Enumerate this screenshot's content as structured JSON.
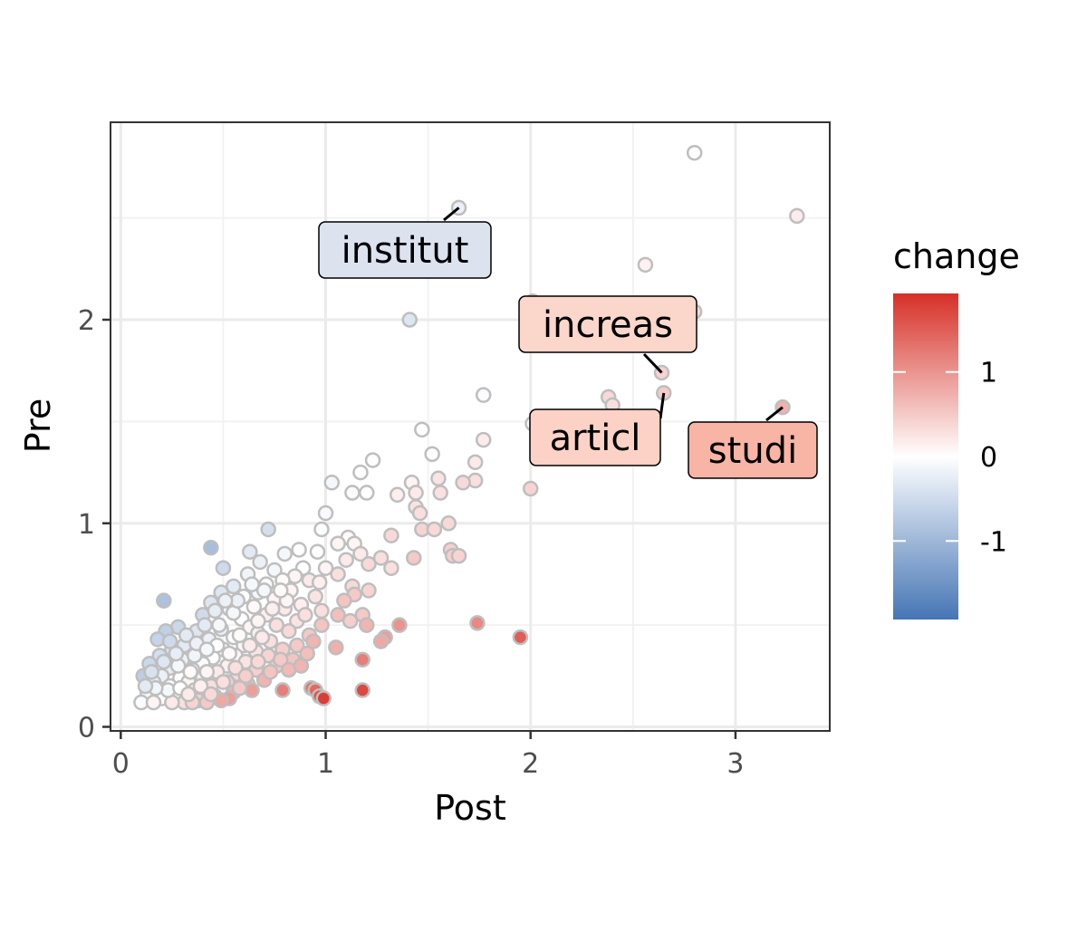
{
  "chart_data": {
    "type": "scatter",
    "xlabel": "Post",
    "ylabel": "Pre",
    "xlim": [
      -0.05,
      3.46
    ],
    "ylim": [
      -0.02,
      2.97
    ],
    "x_ticks": [
      0,
      1,
      2,
      3
    ],
    "y_ticks": [
      0,
      1,
      2
    ],
    "x_tick_labels": [
      "0",
      "1",
      "2",
      "3"
    ],
    "y_tick_labels": [
      "0",
      "1",
      "2"
    ],
    "grid": true,
    "point_outline_color": "#bebebe",
    "color_scale": {
      "title": "change",
      "low_color": "#4575b4",
      "mid_color": "#ffffff",
      "high_color": "#d73027",
      "range": [
        -1.93,
        1.93
      ],
      "breaks": [
        1,
        0,
        -1
      ],
      "break_labels": [
        "1",
        "0",
        "-1"
      ]
    },
    "annotations": [
      {
        "label": "institut",
        "x": 1.65,
        "y": 2.55,
        "change": -0.21,
        "fill": "#dde2ef"
      },
      {
        "label": "increas",
        "x": 2.64,
        "y": 1.74,
        "change": 0.42,
        "fill": "#fbd6cb"
      },
      {
        "label": "articl",
        "x": 2.65,
        "y": 1.64,
        "change": 0.48,
        "fill": "#fbd2c5"
      },
      {
        "label": "studi",
        "x": 3.23,
        "y": 1.57,
        "change": 0.72,
        "fill": "#f8b4a5"
      }
    ],
    "points": [
      {
        "x": 1.65,
        "y": 2.55,
        "change": -0.21
      },
      {
        "x": 2.8,
        "y": 2.82,
        "change": 0.02
      },
      {
        "x": 3.3,
        "y": 2.51,
        "change": 0.17
      },
      {
        "x": 2.56,
        "y": 2.27,
        "change": 0.12
      },
      {
        "x": 2.8,
        "y": 2.04,
        "change": 0.32
      },
      {
        "x": 2.01,
        "y": 2.09,
        "change": -0.02
      },
      {
        "x": 1.41,
        "y": 2.0,
        "change": -0.35
      },
      {
        "x": 2.64,
        "y": 1.74,
        "change": 0.42
      },
      {
        "x": 2.65,
        "y": 1.64,
        "change": 0.48
      },
      {
        "x": 3.23,
        "y": 1.57,
        "change": 0.72
      },
      {
        "x": 1.77,
        "y": 1.63,
        "change": -0.05
      },
      {
        "x": 2.38,
        "y": 1.62,
        "change": 0.35
      },
      {
        "x": 2.4,
        "y": 1.58,
        "change": 0.3
      },
      {
        "x": 1.77,
        "y": 1.41,
        "change": 0.18
      },
      {
        "x": 1.47,
        "y": 1.46,
        "change": 0.0
      },
      {
        "x": 2.01,
        "y": 1.49,
        "change": 0.05
      },
      {
        "x": 1.52,
        "y": 1.34,
        "change": 0.02
      },
      {
        "x": 1.23,
        "y": 1.31,
        "change": -0.03
      },
      {
        "x": 1.73,
        "y": 1.3,
        "change": 0.2
      },
      {
        "x": 1.17,
        "y": 1.25,
        "change": -0.02
      },
      {
        "x": 1.73,
        "y": 1.21,
        "change": 0.3
      },
      {
        "x": 1.67,
        "y": 1.2,
        "change": 0.35
      },
      {
        "x": 1.55,
        "y": 1.22,
        "change": 0.25
      },
      {
        "x": 1.42,
        "y": 1.2,
        "change": 0.1
      },
      {
        "x": 1.03,
        "y": 1.2,
        "change": -0.1
      },
      {
        "x": 1.35,
        "y": 1.14,
        "change": 0.15
      },
      {
        "x": 1.44,
        "y": 1.15,
        "change": 0.2
      },
      {
        "x": 1.56,
        "y": 1.15,
        "change": 0.28
      },
      {
        "x": 1.2,
        "y": 1.15,
        "change": 0.0
      },
      {
        "x": 1.13,
        "y": 1.15,
        "change": -0.05
      },
      {
        "x": 2.0,
        "y": 1.17,
        "change": 0.4
      },
      {
        "x": 1.44,
        "y": 1.08,
        "change": 0.25
      },
      {
        "x": 1.46,
        "y": 1.05,
        "change": 0.3
      },
      {
        "x": 1.0,
        "y": 1.05,
        "change": -0.08
      },
      {
        "x": 1.6,
        "y": 1.0,
        "change": 0.35
      },
      {
        "x": 1.47,
        "y": 0.97,
        "change": 0.4
      },
      {
        "x": 1.53,
        "y": 0.97,
        "change": 0.35
      },
      {
        "x": 0.98,
        "y": 0.97,
        "change": -0.03
      },
      {
        "x": 0.72,
        "y": 0.97,
        "change": -0.45
      },
      {
        "x": 1.32,
        "y": 0.94,
        "change": 0.35
      },
      {
        "x": 1.11,
        "y": 0.93,
        "change": 0.05
      },
      {
        "x": 1.14,
        "y": 0.9,
        "change": 0.1
      },
      {
        "x": 1.06,
        "y": 0.9,
        "change": 0.1
      },
      {
        "x": 0.44,
        "y": 0.88,
        "change": -0.9
      },
      {
        "x": 0.87,
        "y": 0.87,
        "change": 0.0
      },
      {
        "x": 0.8,
        "y": 0.85,
        "change": -0.1
      },
      {
        "x": 0.63,
        "y": 0.86,
        "change": -0.3
      },
      {
        "x": 0.96,
        "y": 0.86,
        "change": 0.0
      },
      {
        "x": 1.17,
        "y": 0.85,
        "change": 0.2
      },
      {
        "x": 1.61,
        "y": 0.87,
        "change": 0.45
      },
      {
        "x": 1.62,
        "y": 0.84,
        "change": 0.45
      },
      {
        "x": 1.65,
        "y": 0.84,
        "change": 0.4
      },
      {
        "x": 1.43,
        "y": 0.83,
        "change": 0.5
      },
      {
        "x": 1.27,
        "y": 0.83,
        "change": 0.3
      },
      {
        "x": 1.1,
        "y": 0.82,
        "change": 0.2
      },
      {
        "x": 0.68,
        "y": 0.81,
        "change": -0.2
      },
      {
        "x": 1.21,
        "y": 0.8,
        "change": 0.35
      },
      {
        "x": 1.32,
        "y": 0.78,
        "change": 0.3
      },
      {
        "x": 1.0,
        "y": 0.78,
        "change": 0.1
      },
      {
        "x": 0.89,
        "y": 0.78,
        "change": 0.0
      },
      {
        "x": 0.5,
        "y": 0.78,
        "change": -0.5
      },
      {
        "x": 0.75,
        "y": 0.77,
        "change": -0.1
      },
      {
        "x": 1.06,
        "y": 0.75,
        "change": 0.3
      },
      {
        "x": 0.85,
        "y": 0.74,
        "change": 0.1
      },
      {
        "x": 0.62,
        "y": 0.75,
        "change": -0.15
      },
      {
        "x": 0.79,
        "y": 0.72,
        "change": 0.05
      },
      {
        "x": 0.92,
        "y": 0.72,
        "change": 0.2
      },
      {
        "x": 0.97,
        "y": 0.71,
        "change": 0.15
      },
      {
        "x": 0.71,
        "y": 0.7,
        "change": -0.05
      },
      {
        "x": 0.55,
        "y": 0.69,
        "change": -0.3
      },
      {
        "x": 1.13,
        "y": 0.69,
        "change": 0.35
      },
      {
        "x": 1.21,
        "y": 0.67,
        "change": 0.4
      },
      {
        "x": 0.83,
        "y": 0.67,
        "change": 0.1
      },
      {
        "x": 0.67,
        "y": 0.66,
        "change": -0.1
      },
      {
        "x": 0.49,
        "y": 0.66,
        "change": -0.35
      },
      {
        "x": 1.14,
        "y": 0.65,
        "change": 0.5
      },
      {
        "x": 0.95,
        "y": 0.64,
        "change": 0.25
      },
      {
        "x": 0.6,
        "y": 0.64,
        "change": 0.0
      },
      {
        "x": 0.75,
        "y": 0.63,
        "change": 0.1
      },
      {
        "x": 0.21,
        "y": 0.62,
        "change": -0.85
      },
      {
        "x": 0.44,
        "y": 0.61,
        "change": -0.35
      },
      {
        "x": 1.09,
        "y": 0.62,
        "change": 0.55
      },
      {
        "x": 0.88,
        "y": 0.6,
        "change": 0.15
      },
      {
        "x": 0.65,
        "y": 0.59,
        "change": 0.05
      },
      {
        "x": 0.53,
        "y": 0.58,
        "change": -0.1
      },
      {
        "x": 0.8,
        "y": 0.58,
        "change": 0.2
      },
      {
        "x": 0.98,
        "y": 0.57,
        "change": 0.3
      },
      {
        "x": 1.06,
        "y": 0.55,
        "change": 0.6
      },
      {
        "x": 0.4,
        "y": 0.55,
        "change": -0.5
      },
      {
        "x": 1.18,
        "y": 0.55,
        "change": 0.5
      },
      {
        "x": 0.71,
        "y": 0.55,
        "change": 0.15
      },
      {
        "x": 0.59,
        "y": 0.53,
        "change": 0.0
      },
      {
        "x": 1.12,
        "y": 0.52,
        "change": 0.45
      },
      {
        "x": 0.86,
        "y": 0.52,
        "change": 0.25
      },
      {
        "x": 1.74,
        "y": 0.51,
        "change": 1.1
      },
      {
        "x": 1.36,
        "y": 0.5,
        "change": 1.0
      },
      {
        "x": 1.2,
        "y": 0.5,
        "change": 0.7
      },
      {
        "x": 0.98,
        "y": 0.5,
        "change": 0.55
      },
      {
        "x": 0.76,
        "y": 0.5,
        "change": 0.3
      },
      {
        "x": 0.63,
        "y": 0.49,
        "change": 0.1
      },
      {
        "x": 0.28,
        "y": 0.49,
        "change": -0.55
      },
      {
        "x": 0.49,
        "y": 0.48,
        "change": -0.2
      },
      {
        "x": 0.37,
        "y": 0.47,
        "change": -0.35
      },
      {
        "x": 0.22,
        "y": 0.47,
        "change": -0.65
      },
      {
        "x": 0.82,
        "y": 0.47,
        "change": 0.35
      },
      {
        "x": 0.67,
        "y": 0.46,
        "change": 0.15
      },
      {
        "x": 0.92,
        "y": 0.45,
        "change": 0.5
      },
      {
        "x": 1.95,
        "y": 0.44,
        "change": 1.5
      },
      {
        "x": 1.29,
        "y": 0.44,
        "change": 0.9
      },
      {
        "x": 1.27,
        "y": 0.42,
        "change": 0.8
      },
      {
        "x": 0.55,
        "y": 0.44,
        "change": 0.0
      },
      {
        "x": 0.18,
        "y": 0.43,
        "change": -0.6
      },
      {
        "x": 0.43,
        "y": 0.43,
        "change": -0.2
      },
      {
        "x": 0.73,
        "y": 0.42,
        "change": 0.3
      },
      {
        "x": 0.94,
        "y": 0.42,
        "change": 0.7
      },
      {
        "x": 0.86,
        "y": 0.4,
        "change": 0.5
      },
      {
        "x": 0.6,
        "y": 0.4,
        "change": 0.1
      },
      {
        "x": 0.31,
        "y": 0.4,
        "change": -0.3
      },
      {
        "x": 1.05,
        "y": 0.39,
        "change": 0.75
      },
      {
        "x": 0.79,
        "y": 0.38,
        "change": 0.45
      },
      {
        "x": 0.5,
        "y": 0.38,
        "change": -0.05
      },
      {
        "x": 0.25,
        "y": 0.38,
        "change": -0.4
      },
      {
        "x": 0.66,
        "y": 0.37,
        "change": 0.25
      },
      {
        "x": 0.38,
        "y": 0.36,
        "change": -0.1
      },
      {
        "x": 0.91,
        "y": 0.36,
        "change": 0.6
      },
      {
        "x": 0.56,
        "y": 0.35,
        "change": 0.1
      },
      {
        "x": 0.72,
        "y": 0.35,
        "change": 0.4
      },
      {
        "x": 0.19,
        "y": 0.35,
        "change": -0.45
      },
      {
        "x": 0.45,
        "y": 0.34,
        "change": 0.0
      },
      {
        "x": 1.18,
        "y": 0.33,
        "change": 1.2
      },
      {
        "x": 0.3,
        "y": 0.33,
        "change": -0.2
      },
      {
        "x": 0.84,
        "y": 0.33,
        "change": 0.55
      },
      {
        "x": 0.61,
        "y": 0.32,
        "change": 0.25
      },
      {
        "x": 0.14,
        "y": 0.31,
        "change": -0.55
      },
      {
        "x": 0.4,
        "y": 0.31,
        "change": -0.05
      },
      {
        "x": 0.52,
        "y": 0.3,
        "change": 0.15
      },
      {
        "x": 0.76,
        "y": 0.3,
        "change": 0.5
      },
      {
        "x": 0.24,
        "y": 0.29,
        "change": -0.25
      },
      {
        "x": 0.35,
        "y": 0.28,
        "change": 0.0
      },
      {
        "x": 0.66,
        "y": 0.28,
        "change": 0.45
      },
      {
        "x": 0.47,
        "y": 0.27,
        "change": 0.2
      },
      {
        "x": 0.57,
        "y": 0.26,
        "change": 0.35
      },
      {
        "x": 0.11,
        "y": 0.25,
        "change": -0.7
      },
      {
        "x": 0.2,
        "y": 0.25,
        "change": -0.2
      },
      {
        "x": 0.29,
        "y": 0.24,
        "change": 0.0
      },
      {
        "x": 0.4,
        "y": 0.24,
        "change": 0.15
      },
      {
        "x": 0.7,
        "y": 0.23,
        "change": 0.7
      },
      {
        "x": 0.52,
        "y": 0.22,
        "change": 0.45
      },
      {
        "x": 0.33,
        "y": 0.22,
        "change": 0.1
      },
      {
        "x": 0.16,
        "y": 0.22,
        "change": -0.3
      },
      {
        "x": 0.62,
        "y": 0.21,
        "change": 0.6
      },
      {
        "x": 0.24,
        "y": 0.2,
        "change": -0.05
      },
      {
        "x": 0.44,
        "y": 0.2,
        "change": 0.3
      },
      {
        "x": 0.93,
        "y": 0.19,
        "change": 1.3
      },
      {
        "x": 0.95,
        "y": 0.18,
        "change": 1.4
      },
      {
        "x": 0.79,
        "y": 0.18,
        "change": 1.2
      },
      {
        "x": 1.18,
        "y": 0.18,
        "change": 1.7
      },
      {
        "x": 0.64,
        "y": 0.18,
        "change": 0.9
      },
      {
        "x": 0.36,
        "y": 0.18,
        "change": 0.2
      },
      {
        "x": 0.13,
        "y": 0.17,
        "change": -0.1
      },
      {
        "x": 0.55,
        "y": 0.17,
        "change": 0.7
      },
      {
        "x": 0.27,
        "y": 0.16,
        "change": 0.05
      },
      {
        "x": 0.46,
        "y": 0.15,
        "change": 0.6
      },
      {
        "x": 0.97,
        "y": 0.15,
        "change": 1.6
      },
      {
        "x": 0.99,
        "y": 0.14,
        "change": 1.8
      },
      {
        "x": 0.53,
        "y": 0.14,
        "change": 0.9
      },
      {
        "x": 0.2,
        "y": 0.14,
        "change": 0.0
      },
      {
        "x": 0.38,
        "y": 0.13,
        "change": 0.45
      },
      {
        "x": 0.49,
        "y": 0.13,
        "change": 0.8
      },
      {
        "x": 0.31,
        "y": 0.12,
        "change": 0.3
      },
      {
        "x": 0.1,
        "y": 0.12,
        "change": -0.05
      },
      {
        "x": 0.42,
        "y": 0.12,
        "change": 0.5
      },
      {
        "x": 0.25,
        "y": 0.12,
        "change": 0.2
      },
      {
        "x": 0.16,
        "y": 0.12,
        "change": 0.1
      },
      {
        "x": 0.35,
        "y": 0.12,
        "change": 0.4
      },
      {
        "x": 0.58,
        "y": 0.19,
        "change": 0.5
      },
      {
        "x": 0.28,
        "y": 0.3,
        "change": -0.1
      },
      {
        "x": 0.34,
        "y": 0.27,
        "change": 0.05
      },
      {
        "x": 0.42,
        "y": 0.27,
        "change": 0.1
      },
      {
        "x": 0.36,
        "y": 0.35,
        "change": -0.15
      },
      {
        "x": 0.27,
        "y": 0.36,
        "change": -0.25
      },
      {
        "x": 0.32,
        "y": 0.45,
        "change": -0.3
      },
      {
        "x": 0.47,
        "y": 0.4,
        "change": 0.0
      },
      {
        "x": 0.53,
        "y": 0.36,
        "change": 0.05
      },
      {
        "x": 0.58,
        "y": 0.45,
        "change": 0.05
      },
      {
        "x": 0.63,
        "y": 0.4,
        "change": 0.2
      },
      {
        "x": 0.69,
        "y": 0.44,
        "change": 0.2
      },
      {
        "x": 0.48,
        "y": 0.5,
        "change": -0.1
      },
      {
        "x": 0.41,
        "y": 0.5,
        "change": -0.3
      },
      {
        "x": 0.55,
        "y": 0.56,
        "change": -0.1
      },
      {
        "x": 0.67,
        "y": 0.52,
        "change": 0.1
      },
      {
        "x": 0.74,
        "y": 0.58,
        "change": 0.15
      },
      {
        "x": 0.7,
        "y": 0.67,
        "change": -0.1
      },
      {
        "x": 0.57,
        "y": 0.62,
        "change": -0.2
      },
      {
        "x": 0.46,
        "y": 0.57,
        "change": -0.25
      },
      {
        "x": 0.24,
        "y": 0.42,
        "change": -0.5
      },
      {
        "x": 0.21,
        "y": 0.32,
        "change": -0.35
      },
      {
        "x": 0.15,
        "y": 0.27,
        "change": -0.4
      },
      {
        "x": 0.23,
        "y": 0.18,
        "change": -0.1
      },
      {
        "x": 0.29,
        "y": 0.19,
        "change": 0.0
      },
      {
        "x": 0.33,
        "y": 0.16,
        "change": 0.2
      },
      {
        "x": 0.39,
        "y": 0.2,
        "change": 0.15
      },
      {
        "x": 0.44,
        "y": 0.16,
        "change": 0.35
      },
      {
        "x": 0.5,
        "y": 0.22,
        "change": 0.3
      },
      {
        "x": 0.56,
        "y": 0.29,
        "change": 0.3
      },
      {
        "x": 0.61,
        "y": 0.25,
        "change": 0.45
      },
      {
        "x": 0.67,
        "y": 0.32,
        "change": 0.35
      },
      {
        "x": 0.73,
        "y": 0.27,
        "change": 0.55
      },
      {
        "x": 0.78,
        "y": 0.33,
        "change": 0.5
      },
      {
        "x": 0.82,
        "y": 0.28,
        "change": 0.65
      },
      {
        "x": 0.88,
        "y": 0.3,
        "change": 0.7
      },
      {
        "x": 0.9,
        "y": 0.55,
        "change": 0.3
      },
      {
        "x": 0.81,
        "y": 0.62,
        "change": 0.1
      },
      {
        "x": 0.64,
        "y": 0.7,
        "change": -0.1
      },
      {
        "x": 0.51,
        "y": 0.62,
        "change": -0.2
      },
      {
        "x": 0.78,
        "y": 0.67,
        "change": 0.05
      },
      {
        "x": 0.37,
        "y": 0.41,
        "change": -0.2
      },
      {
        "x": 0.42,
        "y": 0.38,
        "change": -0.1
      },
      {
        "x": 0.17,
        "y": 0.19,
        "change": -0.15
      },
      {
        "x": 0.12,
        "y": 0.2,
        "change": -0.3
      }
    ]
  }
}
